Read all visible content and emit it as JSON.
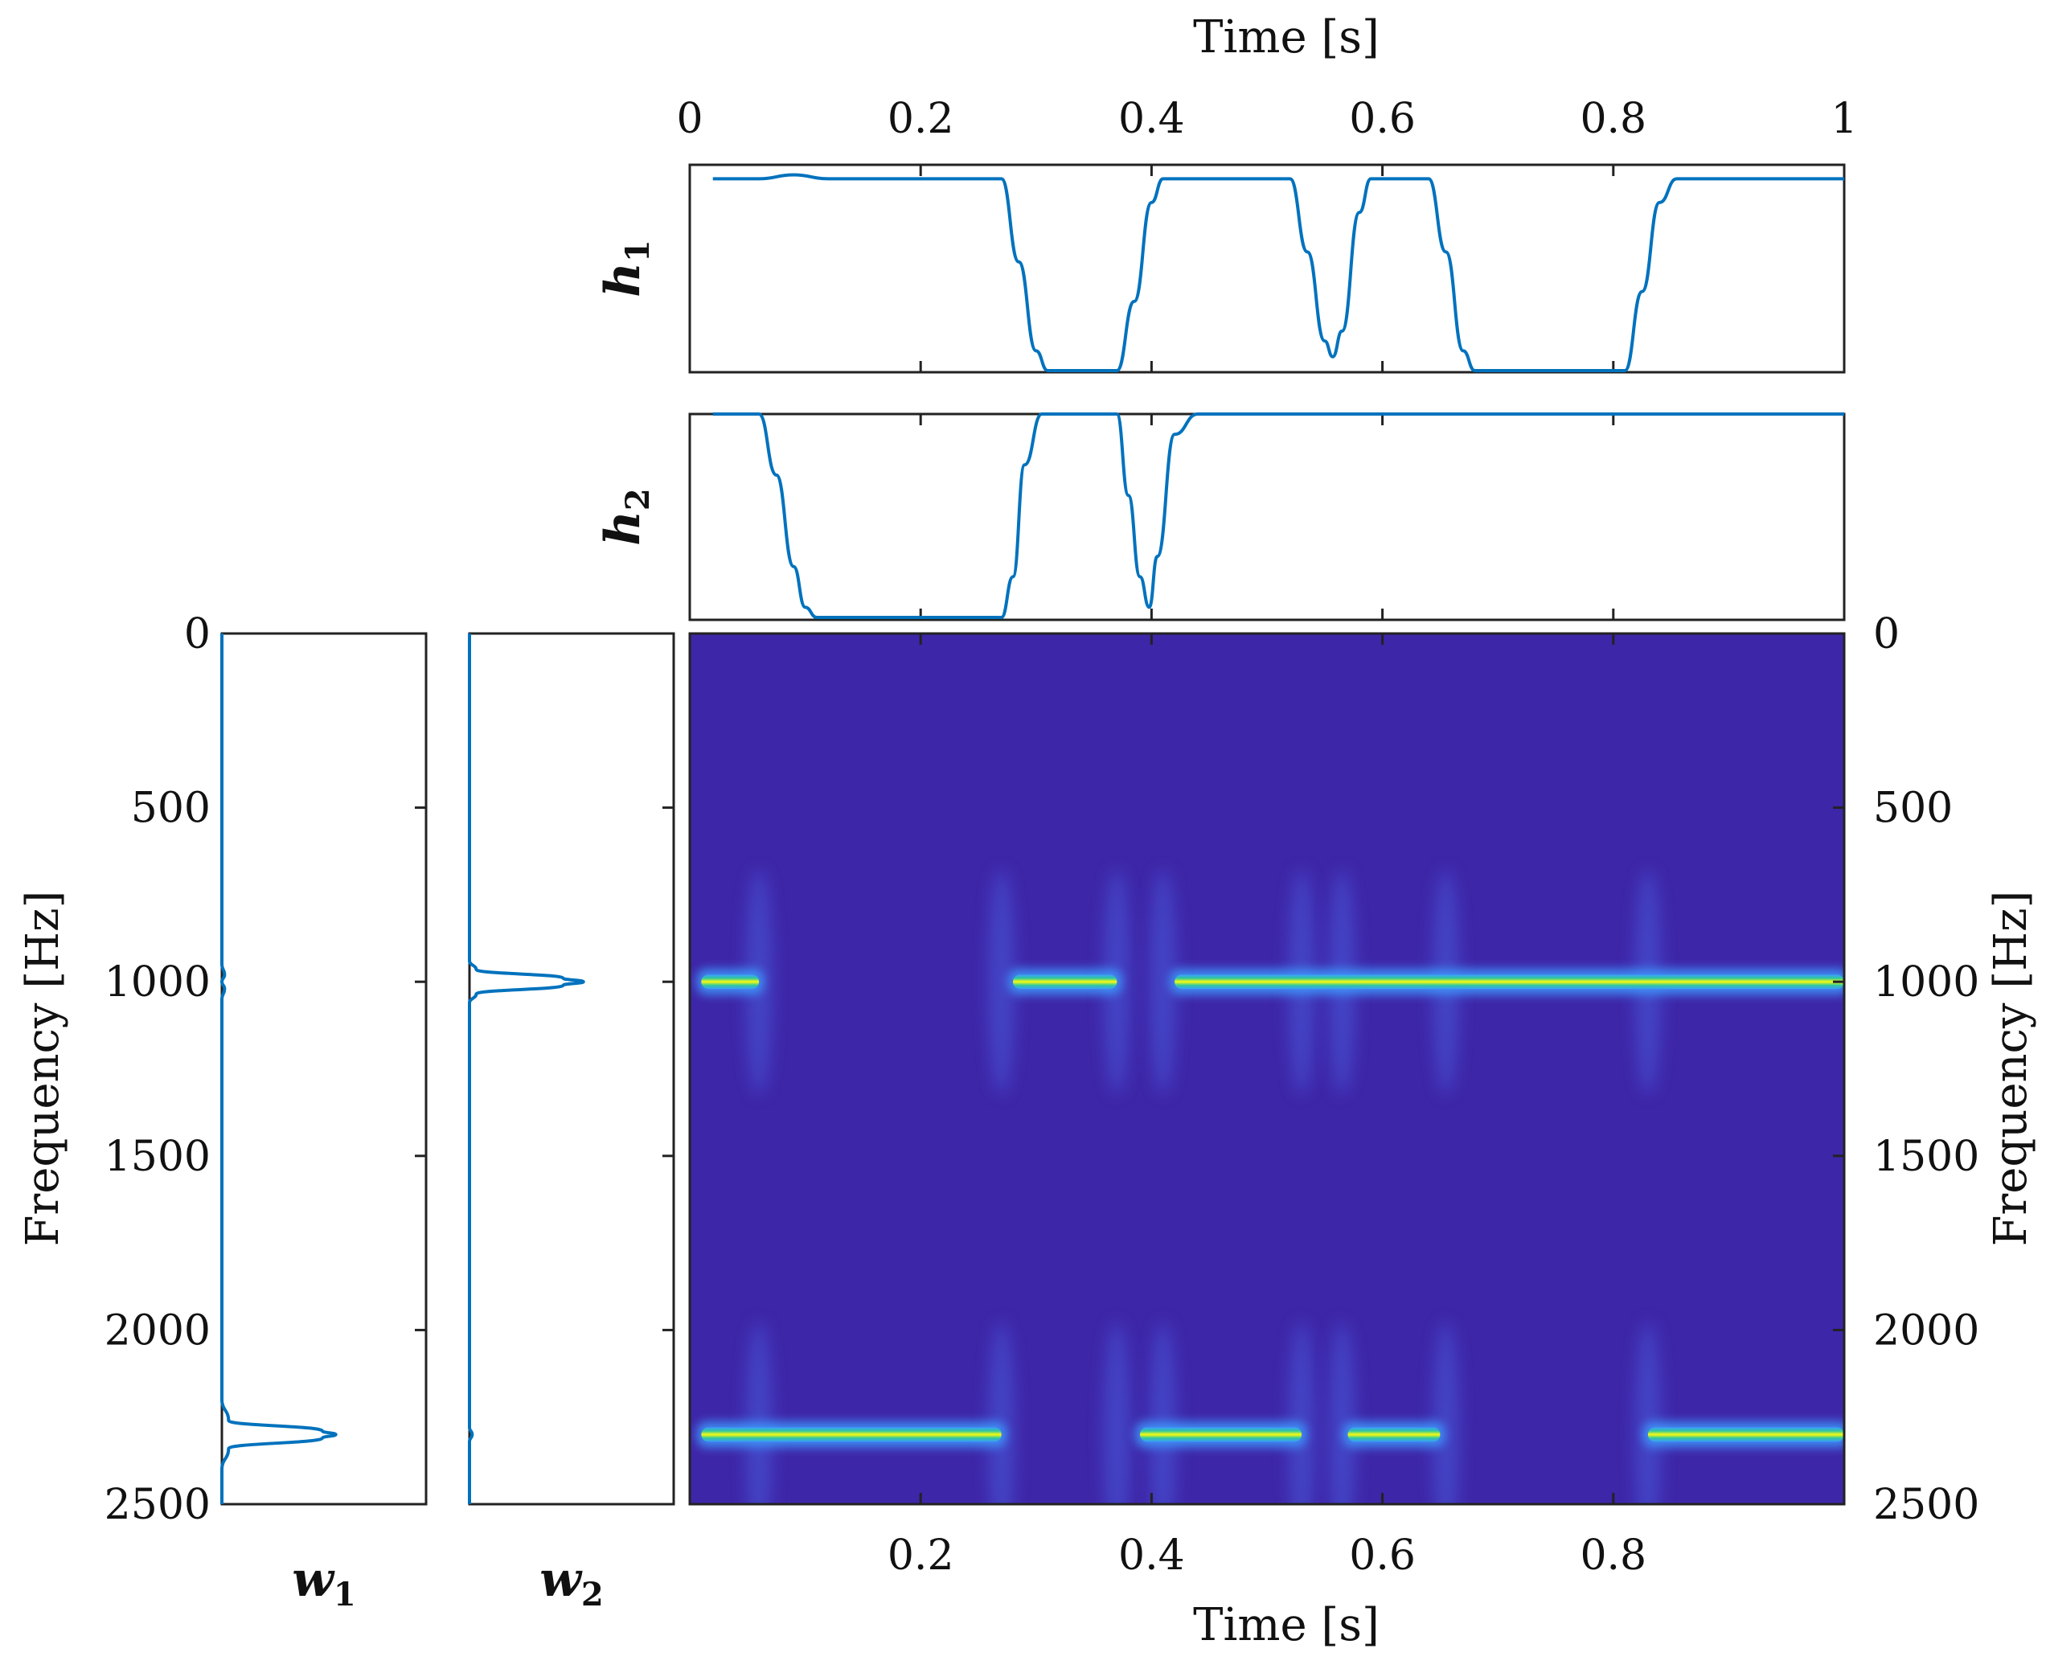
{
  "chart_data": [
    {
      "type": "line",
      "panel": "h1",
      "ylabel": "h",
      "ylabel_sub": "1",
      "xlabel": "Time [s]",
      "xlim": [
        0,
        1
      ],
      "ylim": [
        0,
        1
      ],
      "xticks": [
        "0",
        "0.2",
        "0.4",
        "0.6",
        "0.8",
        "1"
      ],
      "color": "#0072BD",
      "x": [
        0.02,
        0.06,
        0.09,
        0.12,
        0.27,
        0.285,
        0.3,
        0.31,
        0.37,
        0.385,
        0.4,
        0.41,
        0.52,
        0.535,
        0.55,
        0.557,
        0.565,
        0.58,
        0.59,
        0.64,
        0.655,
        0.67,
        0.68,
        0.81,
        0.825,
        0.84,
        0.855,
        1.0
      ],
      "y": [
        0.97,
        0.97,
        0.99,
        0.97,
        0.97,
        0.55,
        0.1,
        0.0,
        0.0,
        0.35,
        0.85,
        0.97,
        0.97,
        0.6,
        0.15,
        0.07,
        0.2,
        0.8,
        0.97,
        0.97,
        0.6,
        0.1,
        0.0,
        0.0,
        0.4,
        0.85,
        0.97,
        0.97
      ]
    },
    {
      "type": "line",
      "panel": "h2",
      "ylabel": "h",
      "ylabel_sub": "2",
      "xlim": [
        0,
        1
      ],
      "ylim": [
        0,
        1
      ],
      "color": "#0072BD",
      "x": [
        0.02,
        0.06,
        0.075,
        0.09,
        0.1,
        0.11,
        0.27,
        0.28,
        0.29,
        0.305,
        0.37,
        0.38,
        0.39,
        0.398,
        0.405,
        0.42,
        0.44,
        0.6,
        0.85,
        1.0
      ],
      "y": [
        1.0,
        1.0,
        0.7,
        0.25,
        0.05,
        0.0,
        0.0,
        0.2,
        0.75,
        1.0,
        1.0,
        0.6,
        0.2,
        0.05,
        0.3,
        0.9,
        1.0,
        1.0,
        1.0,
        1.0
      ]
    },
    {
      "type": "line",
      "panel": "w1",
      "xlabel": "w",
      "xlabel_sub": "1",
      "ylabel": "Frequency [Hz]",
      "ylim": [
        0,
        2500
      ],
      "yticks": [
        "0",
        "500",
        "1000",
        "1500",
        "2000",
        "2500"
      ],
      "color": "#0072BD",
      "freq": [
        0,
        950,
        980,
        1000,
        1020,
        1050,
        2200,
        2260,
        2290,
        2300,
        2310,
        2340,
        2400,
        2500
      ],
      "amp": [
        0.0,
        0.0,
        0.02,
        0.0,
        0.02,
        0.0,
        0.0,
        0.05,
        0.75,
        0.85,
        0.75,
        0.05,
        0.0,
        0.0
      ]
    },
    {
      "type": "line",
      "panel": "w2",
      "xlabel": "w",
      "xlabel_sub": "2",
      "ylim": [
        0,
        2500
      ],
      "color": "#0072BD",
      "freq": [
        0,
        940,
        965,
        990,
        1000,
        1010,
        1035,
        1060,
        2280,
        2300,
        2320,
        2500
      ],
      "amp": [
        0.0,
        0.0,
        0.05,
        0.7,
        0.85,
        0.7,
        0.05,
        0.0,
        0.0,
        0.02,
        0.0,
        0.0
      ]
    },
    {
      "type": "heatmap",
      "panel": "spectrogram",
      "xlabel": "Time [s]",
      "ylabel": "Frequency [Hz]",
      "xlim": [
        0,
        1
      ],
      "ylim": [
        0,
        2500
      ],
      "xticks": [
        "0.2",
        "0.4",
        "0.6",
        "0.8"
      ],
      "yticks": [
        "0",
        "500",
        "1000",
        "1500",
        "2000",
        "2500"
      ],
      "background_color": "#3E26A8",
      "segments": [
        {
          "freq": 1000,
          "t_start": 0.01,
          "t_end": 0.06
        },
        {
          "freq": 1000,
          "t_start": 0.28,
          "t_end": 0.37
        },
        {
          "freq": 1000,
          "t_start": 0.42,
          "t_end": 1.0
        },
        {
          "freq": 2300,
          "t_start": 0.01,
          "t_end": 0.27
        },
        {
          "freq": 2300,
          "t_start": 0.39,
          "t_end": 0.53
        },
        {
          "freq": 2300,
          "t_start": 0.57,
          "t_end": 0.65
        },
        {
          "freq": 2300,
          "t_start": 0.83,
          "t_end": 1.0
        }
      ],
      "transients": [
        0.06,
        0.27,
        0.37,
        0.41,
        0.53,
        0.565,
        0.655,
        0.83
      ]
    }
  ]
}
